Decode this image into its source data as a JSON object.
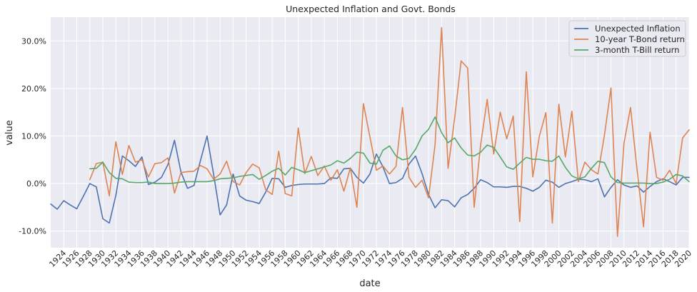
{
  "chart_data": {
    "type": "line",
    "title": "Unexpected Inflation and Govt. Bonds",
    "xlabel": "date",
    "ylabel": "value",
    "xlim": [
      1922,
      2020
    ],
    "ylim": [
      -0.135,
      0.35
    ],
    "y_format": "percent",
    "yticks": [
      -0.1,
      0.0,
      0.1,
      0.2,
      0.3
    ],
    "ytick_labels": [
      "-10.0%",
      "0.0%",
      "10.0%",
      "20.0%",
      "30.0%"
    ],
    "xticks": [
      1924,
      1926,
      1928,
      1930,
      1932,
      1934,
      1936,
      1938,
      1940,
      1942,
      1944,
      1946,
      1948,
      1950,
      1952,
      1954,
      1956,
      1958,
      1960,
      1962,
      1964,
      1966,
      1968,
      1970,
      1972,
      1974,
      1976,
      1978,
      1980,
      1982,
      1984,
      1986,
      1988,
      1990,
      1992,
      1994,
      1996,
      1998,
      2000,
      2002,
      2004,
      2006,
      2008,
      2010,
      2012,
      2014,
      2016,
      2018,
      2020
    ],
    "xtick_labels": [
      "1924",
      "1926",
      "1928",
      "1930",
      "1932",
      "1934",
      "1936",
      "1938",
      "1940",
      "1942",
      "1944",
      "1946",
      "1948",
      "1950",
      "1952",
      "1954",
      "1956",
      "1958",
      "1960",
      "1962",
      "1964",
      "1966",
      "1968",
      "1970",
      "1972",
      "1974",
      "1976",
      "1978",
      "1980",
      "1982",
      "1984",
      "1986",
      "1988",
      "1990",
      "1992",
      "1994",
      "1996",
      "1998",
      "2000",
      "2002",
      "2004",
      "2006",
      "2008",
      "2010",
      "2012",
      "2014",
      "2016",
      "2018",
      "2020"
    ],
    "grid": true,
    "legend_position": "top-right",
    "series": [
      {
        "name": "Unexpected Inflation",
        "color": "#4c72b0",
        "x": [
          1922,
          1923,
          1924,
          1925,
          1926,
          1927,
          1928,
          1929,
          1930,
          1931,
          1932,
          1933,
          1934,
          1935,
          1936,
          1937,
          1938,
          1939,
          1940,
          1941,
          1942,
          1943,
          1944,
          1945,
          1946,
          1947,
          1948,
          1949,
          1950,
          1951,
          1952,
          1953,
          1954,
          1955,
          1956,
          1957,
          1958,
          1959,
          1960,
          1961,
          1962,
          1963,
          1964,
          1965,
          1966,
          1967,
          1968,
          1969,
          1970,
          1971,
          1972,
          1973,
          1974,
          1975,
          1976,
          1977,
          1978,
          1979,
          1980,
          1981,
          1982,
          1983,
          1984,
          1985,
          1986,
          1987,
          1988,
          1989,
          1990,
          1991,
          1992,
          1993,
          1994,
          1995,
          1996,
          1997,
          1998,
          1999,
          2000,
          2001,
          2002,
          2003,
          2004,
          2005,
          2006,
          2007,
          2008,
          2009,
          2010,
          2011,
          2012,
          2013,
          2014,
          2015,
          2016,
          2017,
          2018,
          2019,
          2020
        ],
        "y": [
          -0.043,
          -0.054,
          -0.036,
          -0.045,
          -0.053,
          -0.027,
          0.0,
          -0.007,
          -0.074,
          -0.083,
          -0.025,
          0.058,
          0.048,
          0.036,
          0.056,
          -0.002,
          0.003,
          0.013,
          0.04,
          0.091,
          0.024,
          -0.01,
          -0.004,
          0.049,
          0.1,
          0.02,
          -0.066,
          -0.045,
          0.02,
          -0.026,
          -0.035,
          -0.038,
          -0.042,
          -0.018,
          0.011,
          0.01,
          -0.008,
          -0.004,
          -0.002,
          -0.001,
          -0.001,
          -0.001,
          0.0,
          0.012,
          0.011,
          0.031,
          0.032,
          0.013,
          0.001,
          0.02,
          0.062,
          0.035,
          0.0,
          0.002,
          0.011,
          0.041,
          0.058,
          0.021,
          -0.023,
          -0.051,
          -0.034,
          -0.036,
          -0.049,
          -0.03,
          -0.023,
          -0.01,
          0.008,
          0.002,
          -0.007,
          -0.007,
          -0.008,
          -0.006,
          -0.006,
          -0.01,
          -0.016,
          -0.008,
          0.007,
          0.003,
          -0.008,
          0.0,
          0.004,
          0.009,
          0.008,
          0.004,
          0.01,
          -0.028,
          -0.008,
          0.008,
          -0.003,
          -0.008,
          -0.005,
          -0.018,
          -0.006,
          0.004,
          0.01,
          0.004,
          -0.003,
          0.013,
          0.013
        ]
      },
      {
        "name": "10-year T-Bond return",
        "color": "#dd8452",
        "x": [
          1928,
          1929,
          1930,
          1931,
          1932,
          1933,
          1934,
          1935,
          1936,
          1937,
          1938,
          1939,
          1940,
          1941,
          1942,
          1943,
          1944,
          1945,
          1946,
          1947,
          1948,
          1949,
          1950,
          1951,
          1952,
          1953,
          1954,
          1955,
          1956,
          1957,
          1958,
          1959,
          1960,
          1961,
          1962,
          1963,
          1964,
          1965,
          1966,
          1967,
          1968,
          1969,
          1970,
          1971,
          1972,
          1973,
          1974,
          1975,
          1976,
          1977,
          1978,
          1979,
          1980,
          1981,
          1982,
          1983,
          1984,
          1985,
          1986,
          1987,
          1988,
          1989,
          1990,
          1991,
          1992,
          1993,
          1994,
          1995,
          1996,
          1997,
          1998,
          1999,
          2000,
          2001,
          2002,
          2003,
          2004,
          2005,
          2006,
          2007,
          2008,
          2009,
          2010,
          2011,
          2012,
          2013,
          2014,
          2015,
          2016,
          2017,
          2018,
          2019,
          2020
        ],
        "y": [
          0.008,
          0.042,
          0.045,
          -0.026,
          0.088,
          0.019,
          0.08,
          0.045,
          0.05,
          0.014,
          0.042,
          0.044,
          0.054,
          -0.02,
          0.023,
          0.025,
          0.026,
          0.038,
          0.031,
          0.009,
          0.02,
          0.047,
          0.004,
          -0.003,
          0.023,
          0.041,
          0.033,
          -0.013,
          -0.023,
          0.068,
          -0.021,
          -0.026,
          0.117,
          0.021,
          0.057,
          0.017,
          0.037,
          0.007,
          0.029,
          -0.016,
          0.033,
          -0.05,
          0.168,
          0.098,
          0.028,
          0.037,
          0.02,
          0.036,
          0.16,
          0.013,
          -0.008,
          0.007,
          -0.03,
          0.082,
          0.328,
          0.032,
          0.137,
          0.258,
          0.243,
          -0.05,
          0.082,
          0.177,
          0.062,
          0.15,
          0.094,
          0.142,
          -0.08,
          0.235,
          0.014,
          0.099,
          0.149,
          -0.083,
          0.167,
          0.056,
          0.152,
          0.004,
          0.045,
          0.029,
          0.02,
          0.102,
          0.201,
          -0.111,
          0.085,
          0.16,
          0.03,
          -0.091,
          0.108,
          0.013,
          0.007,
          0.028,
          0.0,
          0.096,
          0.113
        ]
      },
      {
        "name": "3-month T-Bill return",
        "color": "#55a868",
        "x": [
          1928,
          1929,
          1930,
          1931,
          1932,
          1933,
          1934,
          1935,
          1936,
          1937,
          1938,
          1939,
          1940,
          1941,
          1942,
          1943,
          1944,
          1945,
          1946,
          1947,
          1948,
          1949,
          1950,
          1951,
          1952,
          1953,
          1954,
          1955,
          1956,
          1957,
          1958,
          1959,
          1960,
          1961,
          1962,
          1963,
          1964,
          1965,
          1966,
          1967,
          1968,
          1969,
          1970,
          1971,
          1972,
          1973,
          1974,
          1975,
          1976,
          1977,
          1978,
          1979,
          1980,
          1981,
          1982,
          1983,
          1984,
          1985,
          1986,
          1987,
          1988,
          1989,
          1990,
          1991,
          1992,
          1993,
          1994,
          1995,
          1996,
          1997,
          1998,
          1999,
          2000,
          2001,
          2002,
          2003,
          2004,
          2005,
          2006,
          2007,
          2008,
          2009,
          2010,
          2011,
          2012,
          2013,
          2014,
          2015,
          2016,
          2017,
          2018,
          2019,
          2020
        ],
        "y": [
          0.031,
          0.032,
          0.045,
          0.023,
          0.011,
          0.01,
          0.003,
          0.002,
          0.002,
          0.003,
          0.0,
          0.0,
          0.0,
          0.001,
          0.003,
          0.004,
          0.004,
          0.004,
          0.004,
          0.006,
          0.01,
          0.011,
          0.012,
          0.015,
          0.017,
          0.019,
          0.009,
          0.017,
          0.026,
          0.032,
          0.018,
          0.034,
          0.029,
          0.023,
          0.027,
          0.031,
          0.035,
          0.039,
          0.048,
          0.043,
          0.053,
          0.066,
          0.064,
          0.043,
          0.041,
          0.07,
          0.079,
          0.058,
          0.05,
          0.053,
          0.072,
          0.1,
          0.114,
          0.14,
          0.107,
          0.086,
          0.096,
          0.075,
          0.06,
          0.058,
          0.066,
          0.081,
          0.076,
          0.056,
          0.035,
          0.03,
          0.043,
          0.055,
          0.051,
          0.051,
          0.048,
          0.047,
          0.058,
          0.034,
          0.016,
          0.01,
          0.014,
          0.032,
          0.047,
          0.044,
          0.014,
          0.002,
          0.001,
          0.001,
          0.001,
          0.001,
          0.0,
          0.0,
          0.003,
          0.009,
          0.019,
          0.016,
          0.004
        ]
      }
    ]
  }
}
